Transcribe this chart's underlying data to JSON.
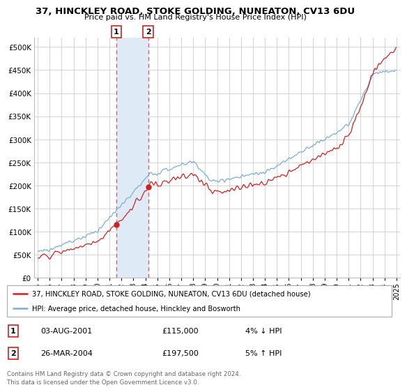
{
  "title": "37, HINCKLEY ROAD, STOKE GOLDING, NUNEATON, CV13 6DU",
  "subtitle": "Price paid vs. HM Land Registry's House Price Index (HPI)",
  "legend_line1": "37, HINCKLEY ROAD, STOKE GOLDING, NUNEATON, CV13 6DU (detached house)",
  "legend_line2": "HPI: Average price, detached house, Hinckley and Bosworth",
  "transaction1_date": "03-AUG-2001",
  "transaction1_price": "£115,000",
  "transaction1_hpi": "4% ↓ HPI",
  "transaction2_date": "26-MAR-2004",
  "transaction2_price": "£197,500",
  "transaction2_hpi": "5% ↑ HPI",
  "footer": "Contains HM Land Registry data © Crown copyright and database right 2024.\nThis data is licensed under the Open Government Licence v3.0.",
  "hpi_color": "#7bafd4",
  "price_color": "#cc2222",
  "marker_color": "#cc2222",
  "highlight_color": "#deeaf5",
  "dashed_color": "#cc6666",
  "transaction1_x": 2001.58,
  "transaction2_x": 2004.23,
  "transaction1_y": 115000,
  "transaction2_y": 197500,
  "ylim_min": 0,
  "ylim_max": 520000,
  "xlim_min": 1994.7,
  "xlim_max": 2025.3,
  "yticks": [
    0,
    50000,
    100000,
    150000,
    200000,
    250000,
    300000,
    350000,
    400000,
    450000,
    500000
  ],
  "xticks": [
    1995,
    1996,
    1997,
    1998,
    1999,
    2000,
    2001,
    2002,
    2003,
    2004,
    2005,
    2006,
    2007,
    2008,
    2009,
    2010,
    2011,
    2012,
    2013,
    2014,
    2015,
    2016,
    2017,
    2018,
    2019,
    2020,
    2021,
    2022,
    2023,
    2024,
    2025
  ]
}
